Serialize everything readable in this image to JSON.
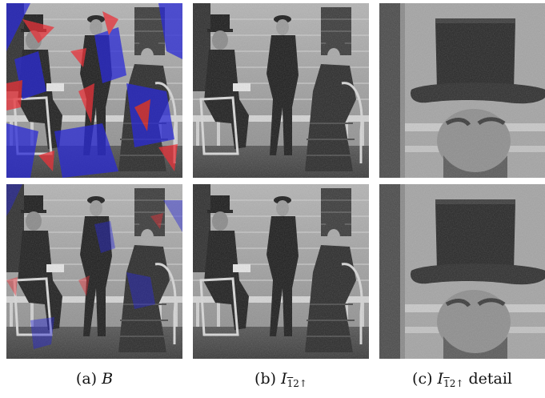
{
  "captions": {
    "a": {
      "prefix": "(a) ",
      "var": "B",
      "sub": "",
      "suffix": ""
    },
    "b": {
      "prefix": "(b) ",
      "var": "I",
      "sub_bar": "1",
      "sub_rest": "2↑",
      "suffix": ""
    },
    "c": {
      "prefix": "(c) ",
      "var": "I",
      "sub_bar": "1",
      "sub_rest": "2↑",
      "suffix": " detail"
    }
  },
  "colors": {
    "artifact_red": "#e8333a",
    "artifact_blue": "#2b2bd6",
    "photo_gray": "#9a9a9a"
  }
}
